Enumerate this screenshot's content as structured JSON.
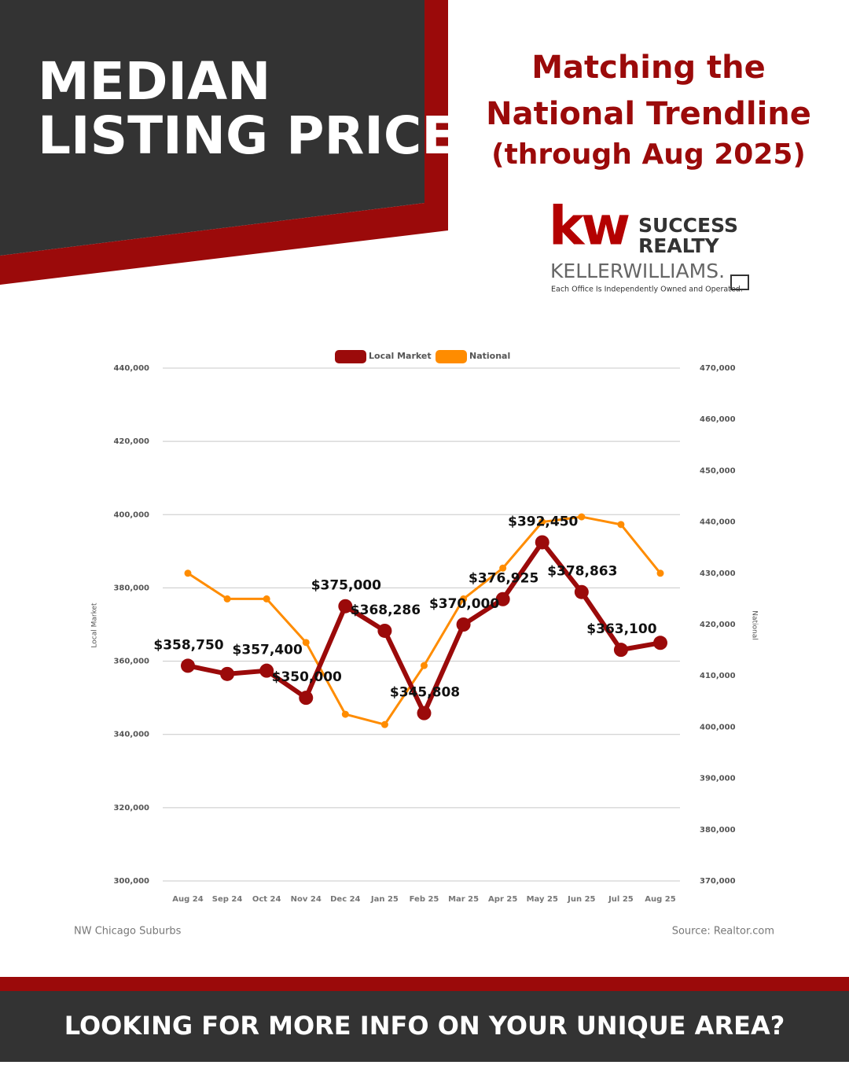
{
  "header": {
    "title_lines": [
      "MEDIAN",
      "LISTING PRICE"
    ],
    "subtitle_lines": [
      "Matching the",
      "National Trendline",
      "(through Aug 2025)"
    ]
  },
  "logo": {
    "mark": "kw",
    "brand_lines": [
      "SUCCESS",
      "REALTY"
    ],
    "company": "KELLERWILLIAMS.",
    "disclaimer": "Each Office Is Independently Owned and Operated."
  },
  "chart_data": {
    "type": "line",
    "categories": [
      "Aug 24",
      "Sep 24",
      "Oct 24",
      "Nov 24",
      "Dec 24",
      "Jan 25",
      "Feb 25",
      "Mar 25",
      "Apr 25",
      "May 25",
      "Jun 25",
      "Jul 25",
      "Aug 25"
    ],
    "series": [
      {
        "name": "Local Market",
        "color": "#9b0a0a",
        "axis": "y",
        "values": [
          358750,
          356500,
          357400,
          350000,
          375000,
          368286,
          345808,
          370000,
          376925,
          392450,
          378863,
          363100,
          365000
        ],
        "value_labels": [
          "$358,750",
          null,
          "$357,400",
          "$350,000",
          "$375,000",
          "$368,286",
          "$345,808",
          "$370,000",
          "$376,925",
          "$392,450",
          "$378,863",
          "$363,100",
          null
        ]
      },
      {
        "name": "National",
        "color": "#ff8c00",
        "axis": "y2",
        "values": [
          430000,
          425000,
          425000,
          416500,
          402500,
          400500,
          412000,
          425000,
          431000,
          440000,
          441000,
          439500,
          430000
        ]
      }
    ],
    "ylabel": "Local Market",
    "y2label": "National",
    "ylim": [
      300000,
      440000
    ],
    "yticks": [
      {
        "value": 300000,
        "label": "300,000"
      },
      {
        "value": 320000,
        "label": "320,000"
      },
      {
        "value": 340000,
        "label": "340,000"
      },
      {
        "value": 360000,
        "label": "360,000"
      },
      {
        "value": 380000,
        "label": "380,000"
      },
      {
        "value": 400000,
        "label": "400,000"
      },
      {
        "value": 420000,
        "label": "420,000"
      },
      {
        "value": 440000,
        "label": "440,000"
      }
    ],
    "y2lim": [
      370000,
      470000
    ],
    "y2ticks": [
      {
        "value": 370000,
        "label": "370,000"
      },
      {
        "value": 380000,
        "label": "380,000"
      },
      {
        "value": 390000,
        "label": "390,000"
      },
      {
        "value": 400000,
        "label": "400,000"
      },
      {
        "value": 410000,
        "label": "410,000"
      },
      {
        "value": 420000,
        "label": "420,000"
      },
      {
        "value": 430000,
        "label": "430,000"
      },
      {
        "value": 440000,
        "label": "440,000"
      },
      {
        "value": 450000,
        "label": "450,000"
      },
      {
        "value": 460000,
        "label": "460,000"
      },
      {
        "value": 470000,
        "label": "470,000"
      }
    ],
    "grid": true,
    "legend": "top"
  },
  "footer": {
    "region": "NW Chicago Suburbs",
    "source": "Source: Realtor.com",
    "banner": "LOOKING FOR MORE INFO ON YOUR UNIQUE AREA?"
  }
}
